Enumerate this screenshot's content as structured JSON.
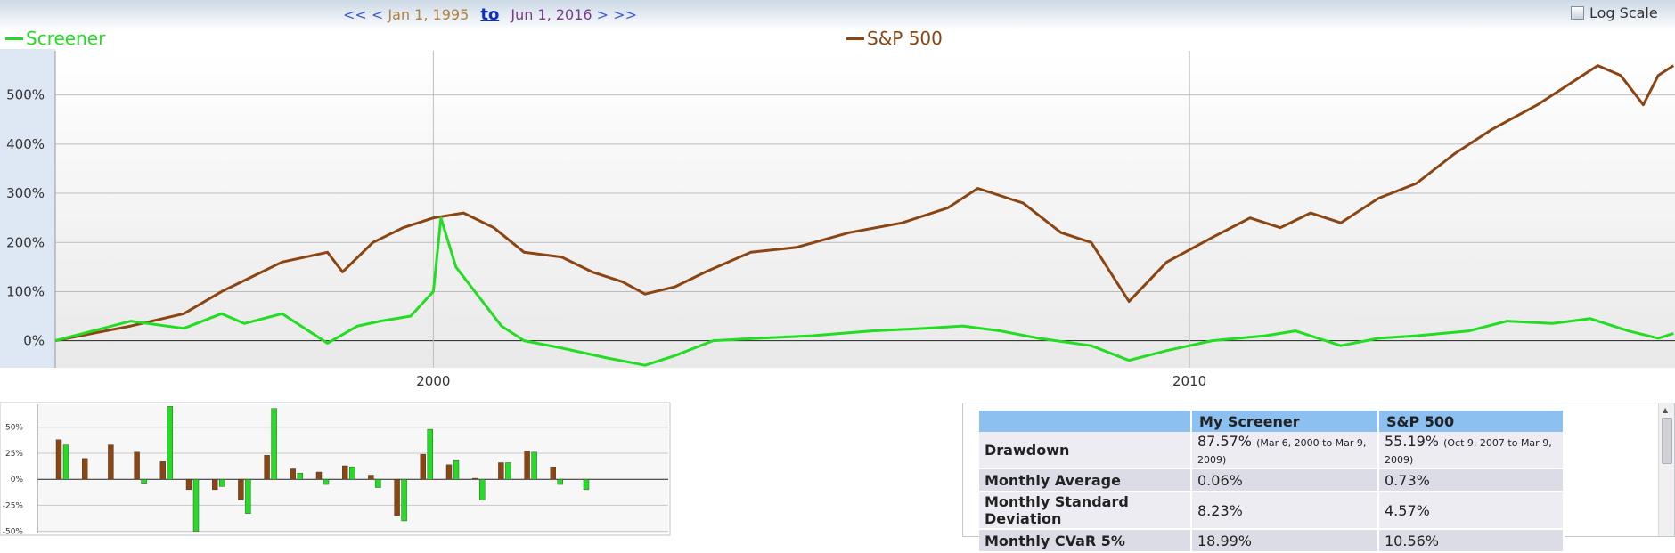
{
  "header": {
    "nav_first": "<<",
    "nav_prev": "<",
    "start_date": "Jan 1, 1995",
    "to_label": "to",
    "end_date": "Jun 1, 2016",
    "nav_next": ">",
    "nav_last": ">>",
    "log_scale_label": "Log Scale",
    "log_scale_checked": false
  },
  "colors": {
    "screener": "#22dd22",
    "sp500": "#8b4513"
  },
  "chart_data": [
    {
      "type": "line",
      "series": [
        {
          "name": "Screener",
          "x": [
            1995.0,
            1996.0,
            1996.7,
            1997.2,
            1997.5,
            1998.0,
            1998.6,
            1999.0,
            1999.3,
            1999.7,
            2000.0,
            2000.1,
            2000.3,
            2000.6,
            2000.9,
            2001.2,
            2001.7,
            2002.3,
            2002.8,
            2003.2,
            2003.7,
            2004.3,
            2005.0,
            2005.8,
            2006.5,
            2007.0,
            2007.5,
            2008.0,
            2008.7,
            2009.2,
            2009.7,
            2010.3,
            2011.0,
            2011.4,
            2012.0,
            2012.5,
            2013.0,
            2013.7,
            2014.2,
            2014.8,
            2015.3,
            2015.8,
            2016.2,
            2016.4
          ],
          "values": [
            0,
            40,
            25,
            55,
            35,
            55,
            -5,
            30,
            40,
            50,
            100,
            250,
            150,
            90,
            30,
            0,
            -15,
            -35,
            -50,
            -30,
            0,
            5,
            10,
            20,
            25,
            30,
            20,
            5,
            -10,
            -40,
            -20,
            0,
            10,
            20,
            -10,
            5,
            10,
            20,
            40,
            35,
            45,
            20,
            5,
            15
          ]
        },
        {
          "name": "S&P 500",
          "x": [
            1995.0,
            1996.0,
            1996.7,
            1997.2,
            1997.6,
            1998.0,
            1998.6,
            1998.8,
            1999.2,
            1999.6,
            2000.0,
            2000.4,
            2000.8,
            2001.2,
            2001.7,
            2002.1,
            2002.5,
            2002.8,
            2003.2,
            2003.6,
            2004.2,
            2004.8,
            2005.5,
            2006.2,
            2006.8,
            2007.2,
            2007.8,
            2008.3,
            2008.7,
            2009.2,
            2009.7,
            2010.3,
            2010.8,
            2011.2,
            2011.6,
            2012.0,
            2012.5,
            2013.0,
            2013.5,
            2014.0,
            2014.6,
            2015.0,
            2015.4,
            2015.7,
            2016.0,
            2016.2,
            2016.4
          ],
          "values": [
            0,
            30,
            55,
            100,
            130,
            160,
            180,
            140,
            200,
            230,
            250,
            260,
            230,
            180,
            170,
            140,
            120,
            95,
            110,
            140,
            180,
            190,
            220,
            240,
            270,
            310,
            280,
            220,
            200,
            80,
            160,
            210,
            250,
            230,
            260,
            240,
            290,
            320,
            380,
            430,
            480,
            520,
            560,
            540,
            480,
            540,
            560
          ]
        }
      ],
      "xticks": [
        "2000",
        "2010"
      ],
      "yticks": [
        "0%",
        "100%",
        "200%",
        "300%",
        "400%",
        "500%"
      ],
      "xlim": [
        1995.0,
        2016.42
      ],
      "ylim": [
        -55,
        590
      ],
      "grid": true,
      "legend_position": "top"
    },
    {
      "type": "bar",
      "series": [
        {
          "name": "S&P 500",
          "values": [
            38,
            20,
            33,
            26,
            17,
            -10,
            -10,
            -20,
            23,
            10,
            7,
            13,
            4,
            -35,
            24,
            14,
            1,
            16,
            27,
            12,
            0
          ]
        },
        {
          "name": "Screener",
          "values": [
            33,
            0,
            0,
            -4,
            70,
            -50,
            -7,
            -33,
            68,
            6,
            -5,
            12,
            -8,
            -40,
            48,
            18,
            -20,
            16,
            26,
            -5,
            -10
          ]
        }
      ],
      "yticks": [
        "50%",
        "25%",
        "0%",
        "-25%",
        "-50%"
      ],
      "ylim": [
        -52,
        72
      ],
      "grid": true
    }
  ],
  "stats_table": {
    "headers": [
      "",
      "My Screener",
      "S&P 500"
    ],
    "rows": [
      {
        "label": "Drawdown",
        "screener": "87.57%",
        "screener_note": "(Mar 6, 2000 to Mar 9, 2009)",
        "sp500": "55.19%",
        "sp500_note": "(Oct 9, 2007 to Mar 9, 2009)"
      },
      {
        "label": "Monthly Average",
        "screener": "0.06%",
        "screener_note": "",
        "sp500": "0.73%",
        "sp500_note": ""
      },
      {
        "label": "Monthly Standard Deviation",
        "screener": "8.23%",
        "screener_note": "",
        "sp500": "4.57%",
        "sp500_note": ""
      },
      {
        "label": "Monthly CVaR 5%",
        "screener": "18.99%",
        "screener_note": "",
        "sp500": "10.56%",
        "sp500_note": ""
      }
    ]
  }
}
